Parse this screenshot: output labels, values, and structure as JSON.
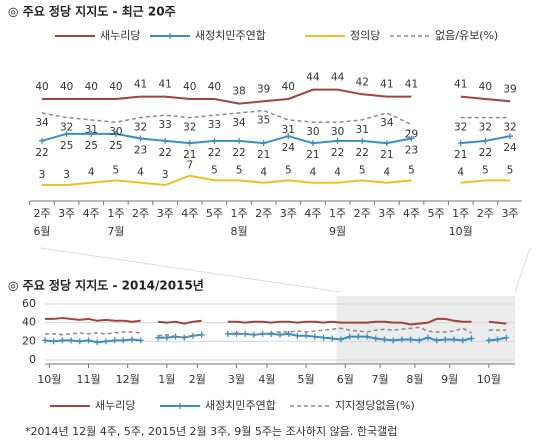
{
  "chart_data": [
    {
      "type": "line",
      "title": "◎ 주요 정당 지지도 - 최근 20주",
      "categories": [
        "2주",
        "3주",
        "4주",
        "1주",
        "2주",
        "3주",
        "4주",
        "5주",
        "1주",
        "2주",
        "3주",
        "4주",
        "1주",
        "2주",
        "3주",
        "4주",
        "5주",
        "1주",
        "2주",
        "3주"
      ],
      "months": [
        "6월",
        null,
        null,
        "7월",
        null,
        null,
        null,
        null,
        "8월",
        null,
        null,
        null,
        "9월",
        null,
        null,
        null,
        null,
        "10월",
        null,
        null
      ],
      "ylim": [
        0,
        46
      ],
      "series": [
        {
          "name": "새누리당",
          "color": "#a0443e",
          "values": [
            40,
            40,
            40,
            40,
            41,
            41,
            40,
            40,
            38,
            39,
            40,
            44,
            44,
            42,
            41,
            41,
            null,
            41,
            40,
            39
          ]
        },
        {
          "name": "새정치민주연합",
          "color": "#3a8fc0",
          "marker": "plus",
          "values": [
            22,
            25,
            25,
            25,
            23,
            22,
            21,
            22,
            22,
            21,
            24,
            21,
            22,
            22,
            21,
            23,
            null,
            21,
            22,
            24
          ]
        },
        {
          "name": "정의당",
          "color": "#f0c020",
          "values": [
            3,
            3,
            4,
            5,
            4,
            3,
            7,
            5,
            5,
            4,
            5,
            4,
            4,
            5,
            4,
            5,
            null,
            4,
            5,
            5
          ]
        },
        {
          "name": "없음/유보(%)",
          "color": "#8a8a8a",
          "dash": true,
          "values": [
            34,
            32,
            31,
            30,
            32,
            33,
            32,
            33,
            34,
            35,
            31,
            30,
            30,
            31,
            34,
            29,
            null,
            32,
            32,
            32
          ]
        }
      ]
    },
    {
      "type": "line",
      "title": "◎ 주요 정당 지지도 - 2014/2015년",
      "x": [
        0,
        1,
        2,
        3,
        4,
        5,
        6,
        7,
        8,
        9,
        10,
        11,
        12,
        13,
        14,
        15,
        16,
        17,
        18,
        19,
        20,
        21,
        22,
        23,
        24,
        25,
        26,
        27,
        28,
        29,
        30,
        31,
        32,
        33,
        34,
        35,
        36,
        37,
        38,
        39,
        40,
        41,
        42,
        43,
        44,
        45,
        46,
        47,
        48,
        49,
        50,
        51,
        52,
        53
      ],
      "xlim": [
        0,
        54
      ],
      "xticks": [
        {
          "value": 0.5,
          "label": "10월"
        },
        {
          "value": 5,
          "label": "11월"
        },
        {
          "value": 9.5,
          "label": "12월"
        },
        {
          "value": 14,
          "label": "1월"
        },
        {
          "value": 17.5,
          "label": "2월"
        },
        {
          "value": 22,
          "label": "3월"
        },
        {
          "value": 25.5,
          "label": "4월"
        },
        {
          "value": 30,
          "label": "5월"
        },
        {
          "value": 34.5,
          "label": "6월"
        },
        {
          "value": 38.5,
          "label": "7월"
        },
        {
          "value": 42.5,
          "label": "8월"
        },
        {
          "value": 46.5,
          "label": "9월"
        },
        {
          "value": 51,
          "label": "10월"
        }
      ],
      "ylim": [
        0,
        60
      ],
      "yticks": [
        0,
        20,
        40,
        60
      ],
      "grid": true,
      "highlight": [
        33.5,
        54
      ],
      "series": [
        {
          "name": "새누리당",
          "color": "#a0443e",
          "values": [
            44,
            44,
            45,
            44,
            43,
            44,
            42,
            43,
            42,
            42,
            41,
            42,
            null,
            41,
            40,
            41,
            39,
            41,
            42,
            null,
            null,
            41,
            41,
            40,
            41,
            41,
            40,
            41,
            41,
            40,
            41,
            41,
            40,
            41,
            40,
            40,
            40,
            40,
            41,
            41,
            40,
            40,
            38,
            39,
            40,
            44,
            44,
            42,
            41,
            41,
            null,
            41,
            40,
            39
          ]
        },
        {
          "name": "새정치민주연합",
          "color": "#3a8fc0",
          "marker": "plus",
          "values": [
            21,
            20,
            21,
            21,
            20,
            21,
            19,
            20,
            21,
            21,
            22,
            21,
            null,
            24,
            24,
            25,
            24,
            26,
            27,
            null,
            null,
            28,
            28,
            28,
            27,
            28,
            28,
            27,
            28,
            26,
            26,
            25,
            24,
            23,
            22,
            25,
            25,
            25,
            23,
            22,
            21,
            22,
            22,
            21,
            24,
            21,
            22,
            22,
            21,
            23,
            null,
            21,
            22,
            24
          ]
        },
        {
          "name": "지지정당없음(%)",
          "color": "#8a8a8a",
          "dash": true,
          "values": [
            28,
            28,
            27,
            28,
            29,
            28,
            29,
            28,
            29,
            30,
            30,
            29,
            null,
            26,
            27,
            25,
            24,
            26,
            27,
            null,
            null,
            28,
            29,
            28,
            27,
            28,
            29,
            30,
            30,
            31,
            30,
            31,
            32,
            33,
            34,
            32,
            31,
            30,
            32,
            33,
            32,
            33,
            34,
            35,
            31,
            30,
            30,
            31,
            34,
            29,
            null,
            32,
            32,
            32
          ]
        }
      ],
      "footnote": "*2014년 12월 4주, 5주, 2015년 2월 3주, 9월 5주는 조사하지 않음. 한국갤럽"
    }
  ]
}
